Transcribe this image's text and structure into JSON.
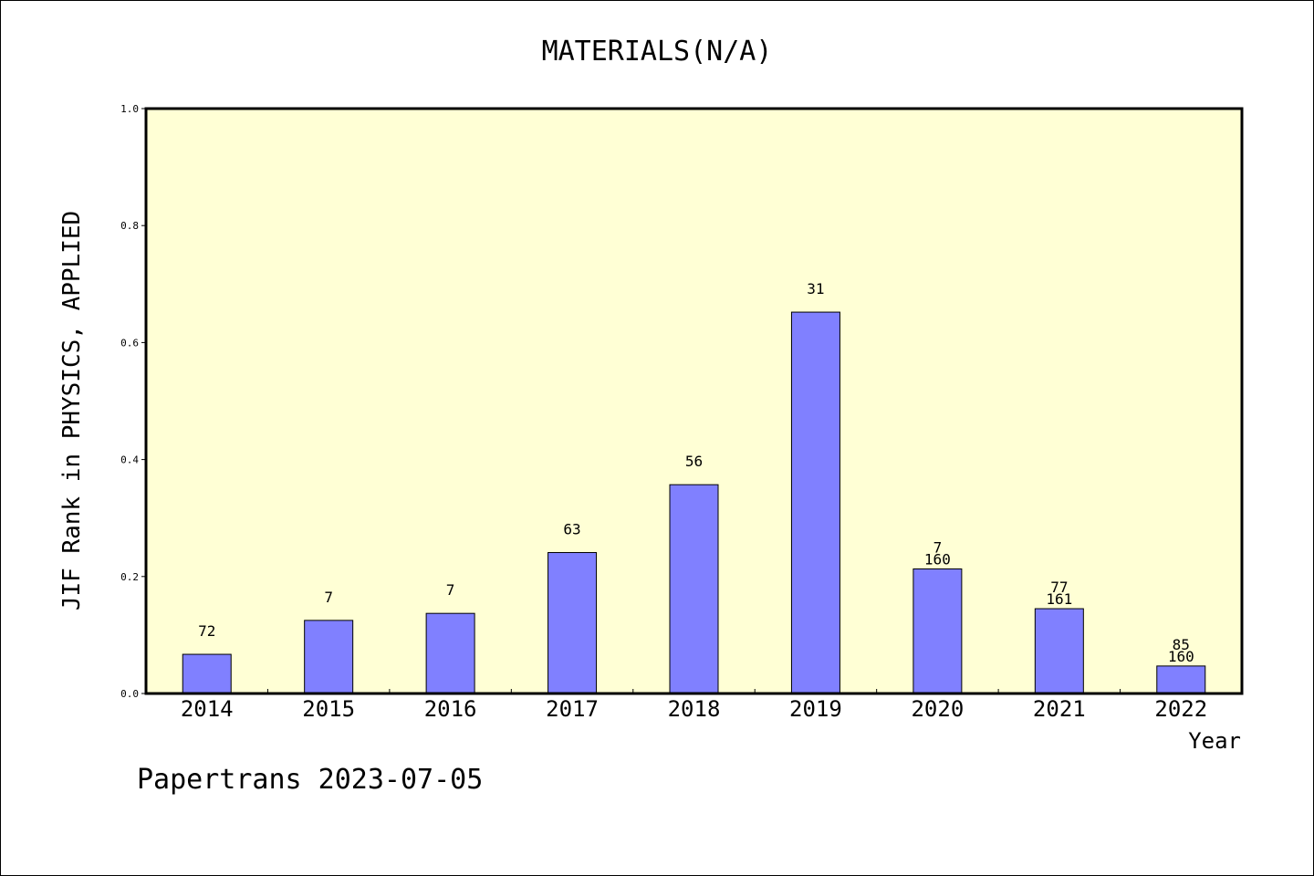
{
  "chart_data": {
    "type": "bar",
    "title": "MATERIALS(N/A)",
    "xlabel": "Year",
    "ylabel": "JIF Rank in PHYSICS, APPLIED",
    "ylim": [
      0,
      1.0
    ],
    "yticks": [
      "0.0",
      "0.2",
      "0.4",
      "0.6",
      "0.8",
      "1.0"
    ],
    "grid": false,
    "categories": [
      "2014",
      "2015",
      "2016",
      "2017",
      "2018",
      "2019",
      "2020",
      "2021",
      "2022"
    ],
    "values": [
      0.067,
      0.125,
      0.137,
      0.241,
      0.357,
      0.652,
      0.213,
      0.145,
      0.047
    ],
    "labels": [
      [
        "72"
      ],
      [
        "7"
      ],
      [
        "7"
      ],
      [
        "63"
      ],
      [
        "56"
      ],
      [
        "31"
      ],
      [
        "7",
        "160"
      ],
      [
        "77",
        "161"
      ],
      [
        "85",
        "160"
      ]
    ],
    "colors": {
      "plot_background": "#FFFFD5",
      "bar_fill": "#8080FF",
      "bar_edge": "#000000"
    }
  },
  "footer": "Papertrans 2023-07-05"
}
